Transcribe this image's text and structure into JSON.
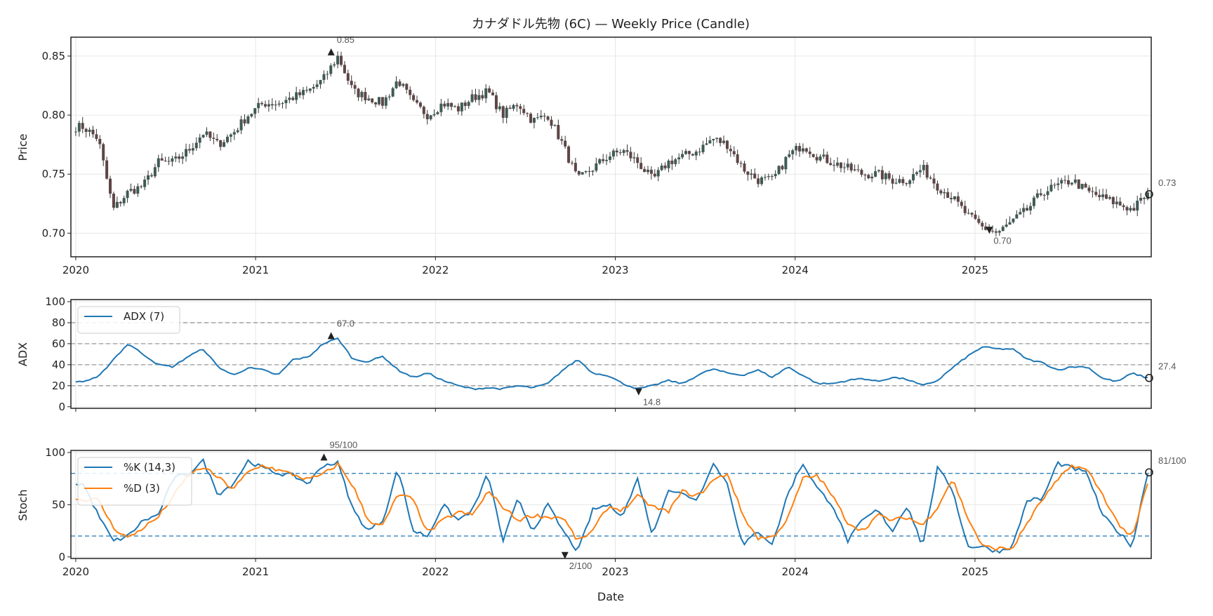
{
  "chart_data": [
    {
      "type": "candlestick",
      "title": "カナダドル先物 (6C) — Weekly Price (Candle)",
      "xlabel": "",
      "ylabel": "Price",
      "x_range": [
        "2019-12-23",
        "2025-12-29"
      ],
      "ylim": [
        0.68,
        0.866
      ],
      "yticks": [
        "0.70",
        "0.75",
        "0.80",
        "0.85"
      ],
      "xticks": [
        "2020",
        "2021",
        "2022",
        "2023",
        "2024",
        "2025"
      ],
      "monthly_close_start": "2020-01",
      "monthly_close": [
        0.79,
        0.78,
        0.72,
        0.735,
        0.74,
        0.76,
        0.76,
        0.77,
        0.785,
        0.775,
        0.785,
        0.8,
        0.81,
        0.81,
        0.815,
        0.82,
        0.83,
        0.85,
        0.82,
        0.815,
        0.81,
        0.83,
        0.81,
        0.8,
        0.81,
        0.805,
        0.815,
        0.82,
        0.8,
        0.81,
        0.795,
        0.8,
        0.775,
        0.745,
        0.755,
        0.765,
        0.77,
        0.76,
        0.745,
        0.76,
        0.765,
        0.77,
        0.78,
        0.775,
        0.755,
        0.745,
        0.745,
        0.765,
        0.775,
        0.765,
        0.76,
        0.755,
        0.75,
        0.75,
        0.745,
        0.745,
        0.755,
        0.74,
        0.73,
        0.715,
        0.705,
        0.7,
        0.71,
        0.72,
        0.735,
        0.74,
        0.745,
        0.735,
        0.73,
        0.725,
        0.72,
        0.733
      ],
      "annotations": {
        "max": {
          "label": "0.85",
          "date": 2021.42,
          "value": 0.853
        },
        "min": {
          "label": "0.70",
          "date": 2025.08,
          "value": 0.703
        },
        "last": {
          "label": "0.73",
          "value": 0.733
        }
      },
      "colors": {
        "up": "#3f5a55",
        "down": "#5e4545"
      }
    },
    {
      "type": "line",
      "ylabel": "ADX",
      "ylim": [
        -1.5,
        102
      ],
      "yticks": [
        "0",
        "20",
        "40",
        "60",
        "80",
        "100"
      ],
      "hlines": [
        20,
        40,
        60,
        80
      ],
      "series": [
        {
          "name": "ADX (7)",
          "color": "#1f77b4",
          "values": [
            24,
            28,
            45,
            60,
            50,
            40,
            38,
            48,
            55,
            38,
            30,
            37,
            35,
            30,
            45,
            47,
            60,
            65,
            45,
            43,
            48,
            35,
            28,
            32,
            25,
            20,
            17,
            18,
            17,
            20,
            18,
            22,
            35,
            45,
            32,
            30,
            22,
            17,
            20,
            25,
            22,
            30,
            36,
            32,
            30,
            35,
            28,
            38,
            30,
            22,
            22,
            25,
            27,
            24,
            28,
            26,
            20,
            25,
            37,
            48,
            57,
            55,
            55,
            45,
            42,
            35,
            38,
            38,
            27,
            24,
            32,
            27.4
          ]
        }
      ],
      "annotations": {
        "max": {
          "label": "67.0",
          "date": 2021.42,
          "value": 67
        },
        "min": {
          "label": "14.8",
          "date": 2023.13,
          "value": 14.8
        },
        "last": {
          "label": "27.4",
          "value": 27.4
        }
      },
      "legend": "top-left"
    },
    {
      "type": "line",
      "xlabel": "Date",
      "ylabel": "Stoch",
      "ylim": [
        -1.5,
        102
      ],
      "yticks": [
        "0",
        "50",
        "100"
      ],
      "hlines": [
        20,
        80
      ],
      "series": [
        {
          "name": "%K (14,3)",
          "color": "#1f77b4",
          "values": [
            70,
            40,
            15,
            20,
            35,
            40,
            75,
            80,
            92,
            60,
            70,
            92,
            85,
            80,
            78,
            70,
            88,
            90,
            45,
            25,
            35,
            85,
            25,
            20,
            50,
            35,
            45,
            80,
            15,
            55,
            25,
            50,
            25,
            5,
            45,
            50,
            40,
            75,
            20,
            65,
            60,
            55,
            90,
            70,
            10,
            25,
            12,
            60,
            90,
            65,
            50,
            15,
            35,
            45,
            25,
            50,
            10,
            85,
            65,
            10,
            10,
            5,
            10,
            55,
            55,
            90,
            85,
            80,
            40,
            25,
            10,
            81
          ]
        },
        {
          "name": "%D (3)",
          "color": "#ff7f0e",
          "values": [
            55,
            55,
            28,
            18,
            28,
            38,
            58,
            78,
            86,
            76,
            65,
            81,
            88,
            83,
            79,
            74,
            79,
            89,
            68,
            35,
            30,
            60,
            55,
            23,
            35,
            43,
            40,
            63,
            48,
            35,
            40,
            38,
            38,
            15,
            25,
            48,
            45,
            58,
            48,
            43,
            63,
            58,
            73,
            80,
            40,
            18,
            19,
            36,
            75,
            78,
            58,
            33,
            25,
            40,
            35,
            38,
            30,
            48,
            75,
            38,
            10,
            8,
            8,
            33,
            55,
            73,
            88,
            83,
            60,
            33,
            18,
            70
          ]
        }
      ],
      "annotations": {
        "max": {
          "label": "95/100",
          "date": 2021.38,
          "value": 95
        },
        "min": {
          "label": "2/100",
          "date": 2022.72,
          "value": 2
        },
        "last": {
          "label": "81/100",
          "value": 81
        }
      },
      "legend": "top-left"
    }
  ]
}
